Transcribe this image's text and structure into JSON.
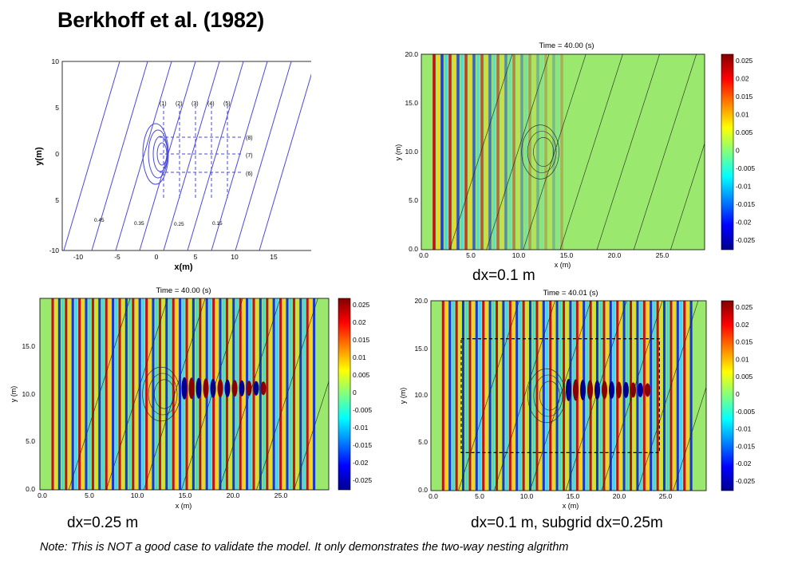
{
  "slide": {
    "title": "Berkhoff et al. (1982)",
    "note": "Note: This is NOT a good case to validate the model. It only demonstrates the two-way nesting algrithm"
  },
  "bathymetry_plot": {
    "xlabel": "x(m)",
    "ylabel": "y(m)",
    "xticks": [
      "-10",
      "-5",
      "0",
      "5",
      "10",
      "15"
    ],
    "yticks": [
      "10",
      "5",
      "0",
      "5",
      "-10"
    ],
    "transect_labels": [
      "(1)",
      "(2)",
      "(3)",
      "(4)",
      "(5)",
      "(6)",
      "(7)",
      "(8)"
    ],
    "depth_labels": [
      "0.45",
      "0.35",
      "0.25",
      "0.15"
    ]
  },
  "panels": {
    "top_right": {
      "time_label": "Time = 40.00 (s)",
      "caption": "dx=0.1 m",
      "xlabel": "x (m)",
      "ylabel": "y (m)"
    },
    "bottom_left": {
      "time_label": "Time = 40.00 (s)",
      "caption": "dx=0.25 m",
      "xlabel": "x (m)",
      "ylabel": "y (m)"
    },
    "bottom_right": {
      "time_label": "Time = 40.01 (s)",
      "caption": "dx=0.1 m, subgrid dx=0.25m",
      "xlabel": "x (m)",
      "ylabel": "y (m)"
    }
  },
  "wave_axes": {
    "xticks": [
      "0.0",
      "5.0",
      "10.0",
      "15.0",
      "20.0",
      "25.0"
    ],
    "yticks_top": [
      "20.0",
      "15.0",
      "10.0",
      "5.0",
      "0.0"
    ],
    "yticks_bottom": [
      "15.0",
      "10.0",
      "5.0",
      "0.0"
    ]
  },
  "colorbar": {
    "ticks": [
      "0.025",
      "0.02",
      "0.015",
      "0.01",
      "0.005",
      "0",
      "-0.005",
      "-0.01",
      "-0.015",
      "-0.02",
      "-0.025"
    ],
    "colors": [
      "#00008f",
      "#0000ff",
      "#0080ff",
      "#00ffff",
      "#80ff80",
      "#ffff00",
      "#ff8000",
      "#ff0000",
      "#800000"
    ]
  }
}
